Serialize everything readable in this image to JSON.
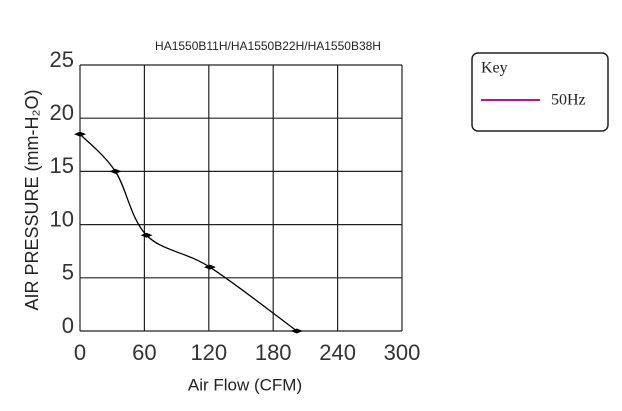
{
  "chart_data": {
    "type": "line",
    "title": "HA1550B11H/HA1550B22H/HA1550B38H",
    "x_label": "Air Flow (CFM)",
    "y_label": "AIR PRESSURE (mm-H₂O)",
    "x": [
      0,
      33,
      62,
      121,
      202
    ],
    "series": [
      {
        "name": "50Hz",
        "color": "#000000",
        "values": [
          18.5,
          15,
          9,
          6,
          0
        ]
      }
    ],
    "legend_title": "Key",
    "legend_color": "#b0188a",
    "legend_position": "right",
    "xlim": [
      0,
      300
    ],
    "xticks": [
      0,
      60,
      120,
      180,
      240,
      300
    ],
    "ylim": [
      0,
      25
    ],
    "yticks": [
      0,
      5,
      10,
      15,
      20,
      25
    ],
    "grid": true
  }
}
